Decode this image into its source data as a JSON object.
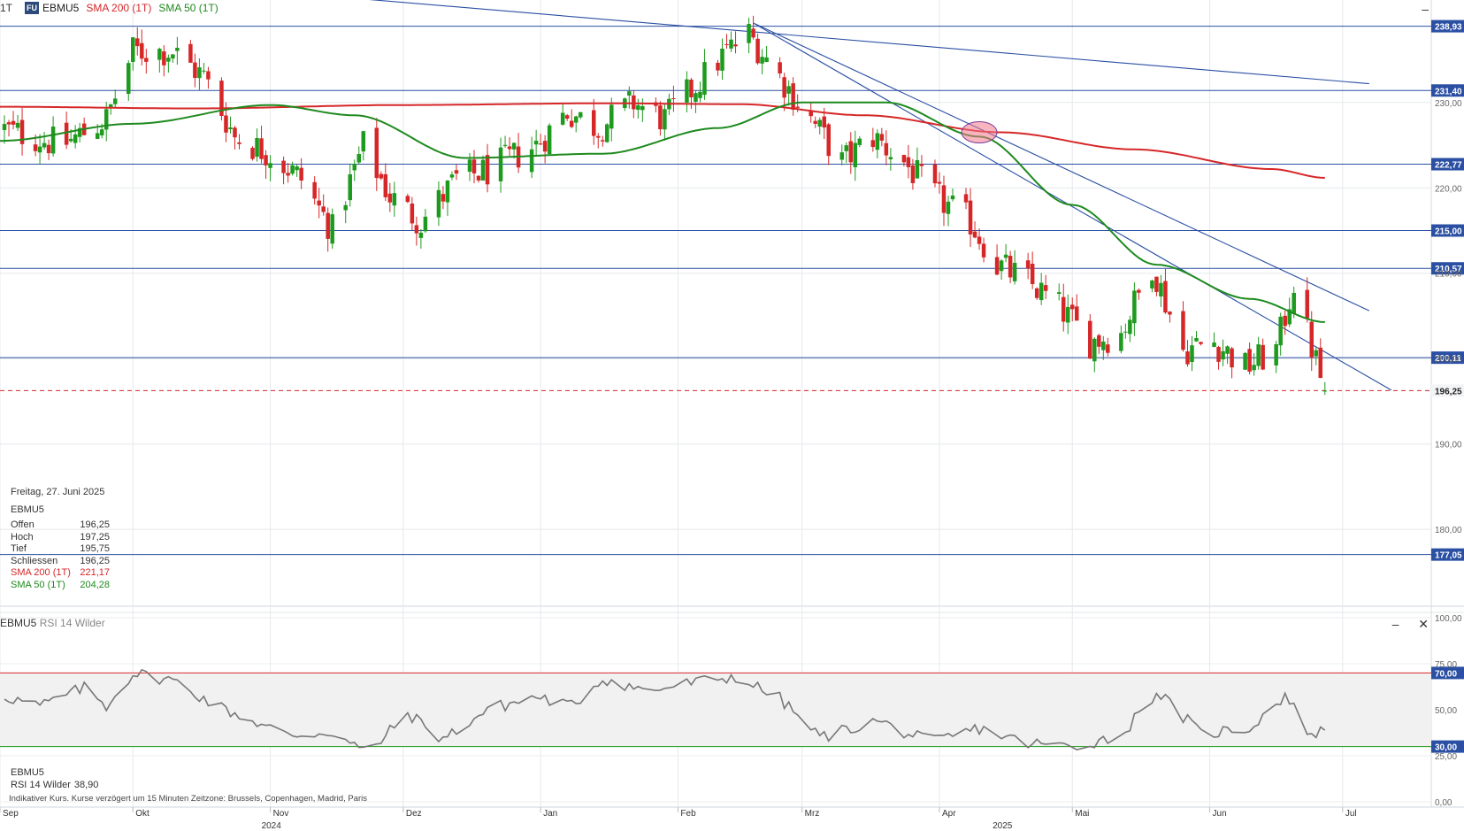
{
  "header": {
    "interval": "1T",
    "badge": "FU",
    "symbol": "EBMU5",
    "sma200_label": "SMA 200 (1T)",
    "sma50_label": "SMA 50 (1T)",
    "minimize": "–"
  },
  "info_box": {
    "date": "Freitag, 27. Juni 2025",
    "symbol": "EBMU5",
    "rows": [
      {
        "label": "Offen",
        "value": "196,25"
      },
      {
        "label": "Hoch",
        "value": "197,25"
      },
      {
        "label": "Tief",
        "value": "195,75"
      },
      {
        "label": "Schliessen",
        "value": "196,25"
      },
      {
        "label": "SMA 200 (1T)",
        "value": "221,17"
      },
      {
        "label": "SMA 50 (1T)",
        "value": "204,28"
      }
    ]
  },
  "rsi_panel": {
    "title": "EBMU5",
    "subtitle": "RSI 14 Wilder",
    "info_symbol": "EBMU5",
    "info_label": "RSI 14 Wilder",
    "info_value": "38,90",
    "minimize": "–",
    "close": "✕"
  },
  "footnote": "Indikativer Kurs. Kurse verzögert um 15 Minuten   Zeitzone: Brussels, Copenhagen, Madrid, Paris",
  "colors": {
    "up": "#1e9a1e",
    "down": "#d62728",
    "sma200": "#d62728",
    "sma50": "#1e8a1e",
    "hline": "#2a4fa3",
    "trend": "#2a4fa3",
    "rsi": "#777777"
  },
  "chart_data": [
    {
      "type": "candlestick",
      "title": "EBMU5",
      "ylim": [
        171,
        242
      ],
      "y_ticks": [
        180,
        190,
        200,
        210,
        220,
        230
      ],
      "y_tick_labels": [
        "180,00",
        "190,00",
        "200,00",
        "210,00",
        "220,00",
        "230,00"
      ],
      "x_ticks": [
        {
          "label": "Sep",
          "date": "2024-09-01"
        },
        {
          "label": "Okt",
          "date": "2024-10-01"
        },
        {
          "label": "Nov",
          "date": "2024-11-01"
        },
        {
          "label": "Dez",
          "date": "2024-12-01"
        },
        {
          "label": "Jan",
          "date": "2025-01-01"
        },
        {
          "label": "Feb",
          "date": "2025-02-01"
        },
        {
          "label": "Mrz",
          "date": "2025-03-01"
        },
        {
          "label": "Apr",
          "date": "2025-04-01"
        },
        {
          "label": "Mai",
          "date": "2025-05-01"
        },
        {
          "label": "Jun",
          "date": "2025-06-01"
        },
        {
          "label": "Jul",
          "date": "2025-07-01"
        }
      ],
      "year_labels": [
        {
          "label": "2024",
          "date": "2024-11-01"
        },
        {
          "label": "2025",
          "date": "2025-04-15"
        }
      ],
      "x_range": [
        "2024-09-01",
        "2025-07-21"
      ],
      "series": [
        {
          "name": "EBMU5",
          "closes": [
            {
              "date": "2024-09-01",
              "close": 227
            },
            {
              "date": "2024-09-15",
              "close": 225
            },
            {
              "date": "2024-09-25",
              "close": 228
            },
            {
              "date": "2024-10-01",
              "close": 236
            },
            {
              "date": "2024-10-10",
              "close": 236
            },
            {
              "date": "2024-10-17",
              "close": 233
            },
            {
              "date": "2024-10-24",
              "close": 226
            },
            {
              "date": "2024-11-01",
              "close": 224
            },
            {
              "date": "2024-11-08",
              "close": 221
            },
            {
              "date": "2024-11-15",
              "close": 215
            },
            {
              "date": "2024-11-22",
              "close": 225
            },
            {
              "date": "2024-11-28",
              "close": 219
            },
            {
              "date": "2024-12-05",
              "close": 216
            },
            {
              "date": "2024-12-13",
              "close": 221
            },
            {
              "date": "2024-12-20",
              "close": 222
            },
            {
              "date": "2024-12-31",
              "close": 225
            },
            {
              "date": "2025-01-07",
              "close": 229
            },
            {
              "date": "2025-01-14",
              "close": 227
            },
            {
              "date": "2025-01-22",
              "close": 230
            },
            {
              "date": "2025-01-29",
              "close": 228
            },
            {
              "date": "2025-02-05",
              "close": 232
            },
            {
              "date": "2025-02-12",
              "close": 236
            },
            {
              "date": "2025-02-17",
              "close": 238
            },
            {
              "date": "2025-02-24",
              "close": 233
            },
            {
              "date": "2025-03-03",
              "close": 228
            },
            {
              "date": "2025-03-10",
              "close": 223
            },
            {
              "date": "2025-03-17",
              "close": 226
            },
            {
              "date": "2025-03-24",
              "close": 223
            },
            {
              "date": "2025-03-31",
              "close": 219
            },
            {
              "date": "2025-04-08",
              "close": 216
            },
            {
              "date": "2025-04-14",
              "close": 211
            },
            {
              "date": "2025-04-21",
              "close": 209
            },
            {
              "date": "2025-04-28",
              "close": 206
            },
            {
              "date": "2025-05-05",
              "close": 202
            },
            {
              "date": "2025-05-12",
              "close": 203
            },
            {
              "date": "2025-05-19",
              "close": 211
            },
            {
              "date": "2025-05-26",
              "close": 201
            },
            {
              "date": "2025-06-02",
              "close": 202
            },
            {
              "date": "2025-06-09",
              "close": 199
            },
            {
              "date": "2025-06-16",
              "close": 201
            },
            {
              "date": "2025-06-20",
              "close": 209
            },
            {
              "date": "2025-06-23",
              "close": 203
            },
            {
              "date": "2025-06-27",
              "close": 196.25
            }
          ]
        },
        {
          "name": "SMA 200 (1T)",
          "points": [
            {
              "date": "2024-09-01",
              "value": 229.5
            },
            {
              "date": "2024-10-15",
              "value": 229.3
            },
            {
              "date": "2024-12-01",
              "value": 229.7
            },
            {
              "date": "2025-01-15",
              "value": 229.9
            },
            {
              "date": "2025-02-15",
              "value": 229.8
            },
            {
              "date": "2025-03-15",
              "value": 228.5
            },
            {
              "date": "2025-04-15",
              "value": 226.5
            },
            {
              "date": "2025-05-15",
              "value": 224.5
            },
            {
              "date": "2025-06-15",
              "value": 222.2
            },
            {
              "date": "2025-06-27",
              "value": 221.17
            }
          ]
        },
        {
          "name": "SMA 50 (1T)",
          "points": [
            {
              "date": "2024-09-01",
              "value": 225.5
            },
            {
              "date": "2024-10-01",
              "value": 227.5
            },
            {
              "date": "2024-11-01",
              "value": 229.7
            },
            {
              "date": "2024-11-20",
              "value": 228.5
            },
            {
              "date": "2024-12-15",
              "value": 223.5
            },
            {
              "date": "2025-01-15",
              "value": 224.0
            },
            {
              "date": "2025-02-10",
              "value": 227.0
            },
            {
              "date": "2025-03-01",
              "value": 230.0
            },
            {
              "date": "2025-03-20",
              "value": 230.0
            },
            {
              "date": "2025-04-10",
              "value": 226.0
            },
            {
              "date": "2025-05-01",
              "value": 218.0
            },
            {
              "date": "2025-05-20",
              "value": 211.0
            },
            {
              "date": "2025-06-10",
              "value": 207.0
            },
            {
              "date": "2025-06-27",
              "value": 204.28
            }
          ]
        }
      ],
      "horizontal_levels": [
        {
          "value": 238.93,
          "label": "238,93"
        },
        {
          "value": 231.4,
          "label": "231,40"
        },
        {
          "value": 222.77,
          "label": "222,77"
        },
        {
          "value": 215.0,
          "label": "215,00"
        },
        {
          "value": 210.57,
          "label": "210,57"
        },
        {
          "value": 200.11,
          "label": "200,11"
        },
        {
          "value": 177.05,
          "label": "177,05"
        }
      ],
      "last_price": {
        "value": 196.25,
        "label": "196,25"
      },
      "trend_lines": [
        {
          "from": {
            "date": "2024-11-20",
            "value": 242.2
          },
          "to": {
            "date": "2025-07-07",
            "value": 232.2
          }
        },
        {
          "from": {
            "date": "2025-02-18",
            "value": 239.3
          },
          "to": {
            "date": "2025-07-12",
            "value": 196.3
          }
        },
        {
          "from": {
            "date": "2025-02-18",
            "value": 239.3
          },
          "to": {
            "date": "2025-07-07",
            "value": 205.6
          }
        }
      ],
      "highlight": {
        "date": "2025-04-10",
        "value": 226.5
      }
    },
    {
      "type": "line",
      "title": "RSI 14 Wilder",
      "ylim": [
        0,
        100
      ],
      "y_ticks": [
        0,
        25,
        50,
        75,
        100
      ],
      "y_tick_labels": [
        "0,00",
        "25,00",
        "50,00",
        "75,00",
        "100,00"
      ],
      "levels": [
        {
          "value": 70,
          "label": "70,00",
          "color": "#d62728"
        },
        {
          "value": 30,
          "label": "30,00",
          "color": "#1e9a1e"
        }
      ],
      "series": [
        {
          "name": "RSI 14 Wilder",
          "points": [
            {
              "date": "2024-09-01",
              "value": 58
            },
            {
              "date": "2024-09-10",
              "value": 52
            },
            {
              "date": "2024-09-20",
              "value": 62
            },
            {
              "date": "2024-09-25",
              "value": 52
            },
            {
              "date": "2024-10-01",
              "value": 70
            },
            {
              "date": "2024-10-10",
              "value": 66
            },
            {
              "date": "2024-10-20",
              "value": 52
            },
            {
              "date": "2024-10-28",
              "value": 44
            },
            {
              "date": "2024-11-05",
              "value": 36
            },
            {
              "date": "2024-11-15",
              "value": 38
            },
            {
              "date": "2024-11-23",
              "value": 26
            },
            {
              "date": "2024-12-02",
              "value": 48
            },
            {
              "date": "2024-12-10",
              "value": 34
            },
            {
              "date": "2024-12-20",
              "value": 50
            },
            {
              "date": "2024-12-31",
              "value": 57
            },
            {
              "date": "2025-01-08",
              "value": 52
            },
            {
              "date": "2025-01-15",
              "value": 67
            },
            {
              "date": "2025-01-25",
              "value": 60
            },
            {
              "date": "2025-02-05",
              "value": 65
            },
            {
              "date": "2025-02-14",
              "value": 68
            },
            {
              "date": "2025-02-24",
              "value": 56
            },
            {
              "date": "2025-03-05",
              "value": 35
            },
            {
              "date": "2025-03-18",
              "value": 44
            },
            {
              "date": "2025-03-30",
              "value": 32
            },
            {
              "date": "2025-04-10",
              "value": 40
            },
            {
              "date": "2025-04-20",
              "value": 32
            },
            {
              "date": "2025-05-01",
              "value": 30
            },
            {
              "date": "2025-05-12",
              "value": 36
            },
            {
              "date": "2025-05-20",
              "value": 60
            },
            {
              "date": "2025-05-30",
              "value": 37
            },
            {
              "date": "2025-06-10",
              "value": 40
            },
            {
              "date": "2025-06-18",
              "value": 58
            },
            {
              "date": "2025-06-24",
              "value": 36
            },
            {
              "date": "2025-06-27",
              "value": 38.9
            }
          ]
        }
      ]
    }
  ]
}
